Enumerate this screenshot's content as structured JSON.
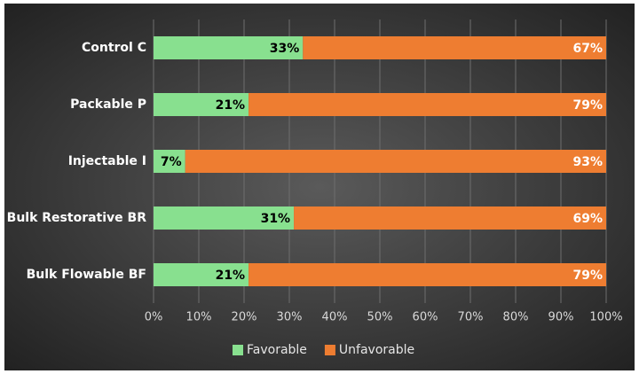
{
  "chart_data": {
    "type": "bar",
    "orientation": "horizontal",
    "stacked": true,
    "categories": [
      "Control C",
      "Packable P",
      "Injectable I",
      "Bulk Restorative BR",
      "Bulk Flowable BF"
    ],
    "series": [
      {
        "name": "Favorable",
        "color": "#88e08f",
        "label_color": "#000000",
        "values": [
          33,
          21,
          7,
          31,
          21
        ],
        "value_labels": [
          "33%",
          "21%",
          "7%",
          "31%",
          "21%"
        ]
      },
      {
        "name": "Unfavorable",
        "color": "#ee7d31",
        "label_color": "#ffffff",
        "values": [
          67,
          79,
          93,
          69,
          79
        ],
        "value_labels": [
          "67%",
          "79%",
          "93%",
          "69%",
          "79%"
        ]
      }
    ],
    "xlim": [
      0,
      100
    ],
    "xticks": [
      {
        "value": 0,
        "label": "0%"
      },
      {
        "value": 10,
        "label": "10%"
      },
      {
        "value": 20,
        "label": "20%"
      },
      {
        "value": 30,
        "label": "30%"
      },
      {
        "value": 40,
        "label": "40%"
      },
      {
        "value": 50,
        "label": "50%"
      },
      {
        "value": 60,
        "label": "60%"
      },
      {
        "value": 70,
        "label": "70%"
      },
      {
        "value": 80,
        "label": "80%"
      },
      {
        "value": 90,
        "label": "90%"
      },
      {
        "value": 100,
        "label": "100%"
      }
    ],
    "grid": true,
    "legend": "bottom"
  }
}
